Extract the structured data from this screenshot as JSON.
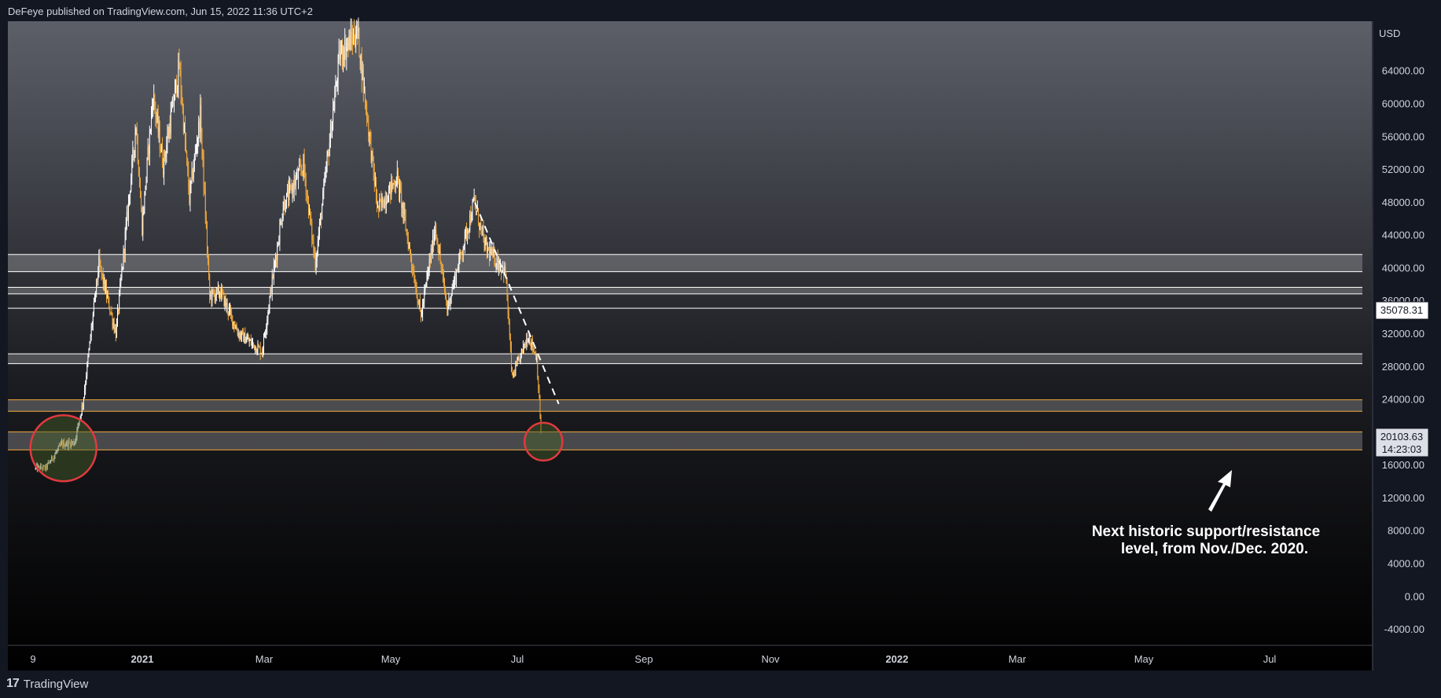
{
  "header": {
    "publisher_line": "DeFeye published on TradingView.com, Jun 15, 2022 11:36 UTC+2"
  },
  "footer": {
    "brand": "TradingView",
    "logo_icon": "tradingview-logo-icon"
  },
  "colors": {
    "background_top": "#5c5f68",
    "background_bottom": "#000000",
    "candle_up": "#ffffff",
    "candle_down": "#f2a93b",
    "zone_line": "#ffffff",
    "zone_line_orange": "#f2a93b",
    "circle": "#e03a3e",
    "axis_text": "#d1d4dc"
  },
  "chart_data": {
    "type": "candlestick",
    "symbol_currency": "USD",
    "ylim": [
      -6000,
      70000
    ],
    "x_tick_labels": [
      "9",
      "2021",
      "Mar",
      "May",
      "Jul",
      "Sep",
      "Nov",
      "2022",
      "Mar",
      "May",
      "Jul"
    ],
    "y_tick_labels": [
      "64000.00",
      "60000.00",
      "56000.00",
      "52000.00",
      "48000.00",
      "44000.00",
      "40000.00",
      "36000.00",
      "32000.00",
      "28000.00",
      "24000.00",
      "20000.00",
      "16000.00",
      "12000.00",
      "8000.00",
      "4000.00",
      "0.00",
      "-4000.00"
    ],
    "y_tick_values": [
      64000,
      60000,
      56000,
      52000,
      48000,
      44000,
      40000,
      36000,
      32000,
      28000,
      24000,
      20000,
      16000,
      12000,
      8000,
      4000,
      0,
      -4000
    ],
    "price_badges": [
      {
        "label": "35078.31",
        "value": 35078.31
      },
      {
        "label": "20103.63",
        "value": 20103.63
      },
      {
        "label": "14:23:03",
        "value": 18600
      }
    ],
    "path_points": [
      {
        "date": "2020-11-06",
        "price": 15600
      },
      {
        "date": "2020-11-25",
        "price": 18500
      },
      {
        "date": "2020-12-10",
        "price": 18700
      },
      {
        "date": "2020-12-20",
        "price": 23500
      },
      {
        "date": "2021-01-08",
        "price": 40500
      },
      {
        "date": "2021-01-28",
        "price": 32000
      },
      {
        "date": "2021-02-21",
        "price": 57500
      },
      {
        "date": "2021-02-28",
        "price": 45000
      },
      {
        "date": "2021-03-13",
        "price": 61000
      },
      {
        "date": "2021-03-25",
        "price": 52500
      },
      {
        "date": "2021-04-13",
        "price": 64500
      },
      {
        "date": "2021-04-25",
        "price": 48500
      },
      {
        "date": "2021-05-08",
        "price": 58500
      },
      {
        "date": "2021-05-19",
        "price": 36500
      },
      {
        "date": "2021-06-01",
        "price": 37000
      },
      {
        "date": "2021-06-22",
        "price": 32000
      },
      {
        "date": "2021-07-20",
        "price": 29800
      },
      {
        "date": "2021-08-14",
        "price": 47500
      },
      {
        "date": "2021-09-07",
        "price": 52500
      },
      {
        "date": "2021-09-21",
        "price": 40500
      },
      {
        "date": "2021-10-20",
        "price": 66000
      },
      {
        "date": "2021-11-10",
        "price": 68700
      },
      {
        "date": "2021-12-04",
        "price": 47000
      },
      {
        "date": "2021-12-27",
        "price": 51000
      },
      {
        "date": "2022-01-24",
        "price": 34000
      },
      {
        "date": "2022-02-10",
        "price": 45000
      },
      {
        "date": "2022-02-24",
        "price": 35000
      },
      {
        "date": "2022-03-28",
        "price": 48000
      },
      {
        "date": "2022-04-10",
        "price": 42500
      },
      {
        "date": "2022-05-04",
        "price": 39500
      },
      {
        "date": "2022-05-12",
        "price": 26500
      },
      {
        "date": "2022-05-31",
        "price": 31800
      },
      {
        "date": "2022-06-10",
        "price": 29000
      },
      {
        "date": "2022-06-15",
        "price": 20100
      }
    ],
    "zones": [
      {
        "top": 41600,
        "bottom": 39500,
        "color": "white"
      },
      {
        "top": 37600,
        "bottom": 36800,
        "color": "white"
      },
      {
        "top": 35050,
        "bottom": 35050,
        "color": "white"
      },
      {
        "top": 29500,
        "bottom": 28300,
        "color": "white"
      },
      {
        "top": 23900,
        "bottom": 22500,
        "color": "orange"
      },
      {
        "top": 20000,
        "bottom": 17800,
        "color": "orange"
      }
    ],
    "trendline": [
      {
        "date": "2022-03-29",
        "price": 47900
      },
      {
        "date": "2022-07-06",
        "price": 23400
      }
    ],
    "circles": [
      {
        "date": "2020-11-27",
        "price": 18000,
        "label": "left-support-circle"
      },
      {
        "date": "2022-06-18",
        "price": 18800,
        "label": "right-support-circle"
      }
    ],
    "annotation": {
      "line1": "Next historic support/resistance",
      "line2": "level, from Nov./Dec. 2020."
    }
  }
}
